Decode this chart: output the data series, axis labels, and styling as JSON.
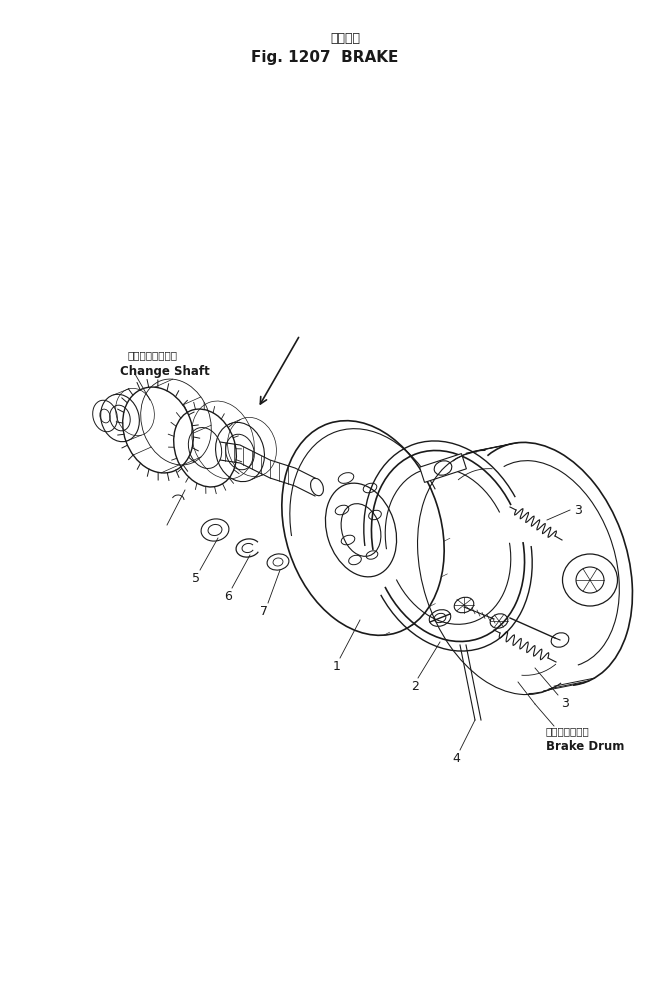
{
  "title_japanese": "ブレーキ",
  "title_english": "Fig. 1207  BRAKE",
  "bg_color": "#ffffff",
  "line_color": "#1a1a1a",
  "change_shaft_jp": "チェンジシャフト",
  "change_shaft_en": "Change Shaft",
  "brake_drum_jp": "ブレーキドラム",
  "brake_drum_en": "Brake Drum"
}
